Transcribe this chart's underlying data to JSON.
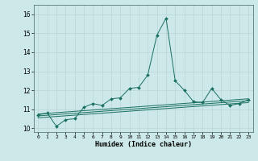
{
  "xlabel": "Humidex (Indice chaleur)",
  "bg_color": "#cce8e8",
  "grid_color": "#b8d4d4",
  "line_color": "#1a7060",
  "xlim": [
    -0.5,
    23.5
  ],
  "ylim": [
    9.8,
    16.5
  ],
  "xticks": [
    0,
    1,
    2,
    3,
    4,
    5,
    6,
    7,
    8,
    9,
    10,
    11,
    12,
    13,
    14,
    15,
    16,
    17,
    18,
    19,
    20,
    21,
    22,
    23
  ],
  "yticks": [
    10,
    11,
    12,
    13,
    14,
    15,
    16
  ],
  "series_main": {
    "x": [
      0,
      1,
      2,
      3,
      4,
      5,
      6,
      7,
      8,
      9,
      10,
      11,
      12,
      13,
      14,
      15,
      16,
      17,
      18,
      19,
      20,
      21,
      22,
      23
    ],
    "y": [
      10.7,
      10.8,
      10.1,
      10.45,
      10.5,
      11.1,
      11.3,
      11.2,
      11.55,
      11.6,
      12.1,
      12.15,
      12.8,
      14.9,
      15.8,
      12.5,
      12.0,
      11.4,
      11.35,
      12.1,
      11.5,
      11.2,
      11.3,
      11.5
    ]
  },
  "trend_lines": [
    {
      "x": [
        0,
        23
      ],
      "y": [
        10.75,
        11.55
      ]
    },
    {
      "x": [
        0,
        23
      ],
      "y": [
        10.65,
        11.45
      ]
    },
    {
      "x": [
        0,
        23
      ],
      "y": [
        10.55,
        11.35
      ]
    }
  ]
}
